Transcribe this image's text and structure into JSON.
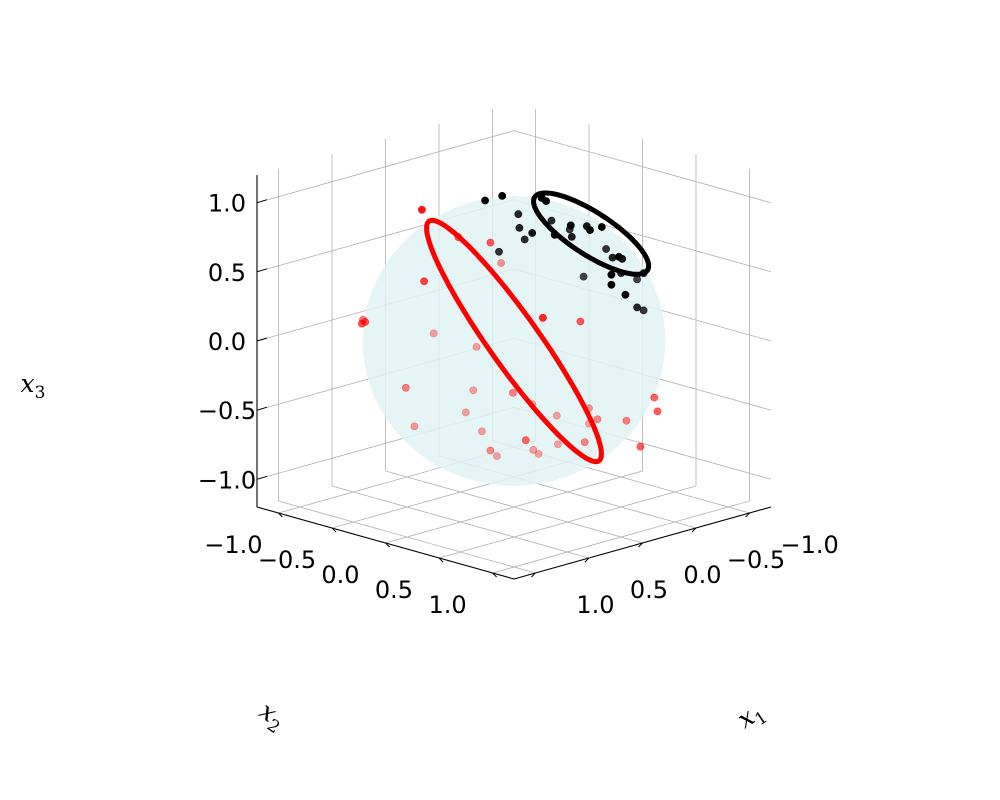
{
  "chart_data": {
    "type": "scatter",
    "projection": "3d",
    "title": "",
    "axes": {
      "x1": {
        "label": "x",
        "subscript": "1",
        "ticks": [
          "−1.0",
          "−0.5",
          "0.0",
          "0.5",
          "1.0"
        ],
        "range": [
          -1.2,
          1.2
        ]
      },
      "x2": {
        "label": "x",
        "subscript": "2",
        "ticks": [
          "−1.0",
          "−0.5",
          "0.0",
          "0.5",
          "1.0"
        ],
        "range": [
          -1.2,
          1.2
        ]
      },
      "x3": {
        "label": "x",
        "subscript": "3",
        "ticks": [
          "−1.0",
          "−0.5",
          "0.0",
          "0.5",
          "1.0"
        ],
        "range": [
          -1.2,
          1.2
        ]
      }
    },
    "grid": true,
    "surface": {
      "shape": "unit sphere",
      "color": "#e0f2f2"
    },
    "circles": [
      {
        "color": "#000000",
        "center": [
          -0.72,
          0.0,
          0.62
        ],
        "normal": [
          -0.72,
          0.0,
          0.62
        ],
        "radius": 0.45
      },
      {
        "color": "#ff0000",
        "center": [
          0.0,
          0.0,
          0.0
        ],
        "normal": [
          -0.58,
          0.58,
          0.58
        ],
        "radius": 1.0
      }
    ],
    "series": [
      {
        "color": "#000000",
        "points": [
          [
            -0.45,
            -0.56,
            0.83
          ],
          [
            -0.67,
            -0.14,
            0.66
          ],
          [
            -0.25,
            -0.2,
            0.72
          ],
          [
            -0.66,
            -0.36,
            0.79
          ],
          [
            -0.93,
            -0.02,
            0.2
          ],
          [
            -0.36,
            -0.01,
            0.79
          ],
          [
            -0.08,
            -0.22,
            0.58
          ],
          [
            -0.53,
            0.01,
            0.64
          ],
          [
            -0.88,
            -0.06,
            0.62
          ],
          [
            -0.72,
            0.2,
            0.49
          ],
          [
            -0.71,
            0.29,
            0.4
          ],
          [
            -0.41,
            -0.24,
            0.64
          ],
          [
            -0.97,
            0.01,
            0.4
          ],
          [
            -0.61,
            0.54,
            0.43
          ],
          [
            -0.79,
            0.22,
            0.47
          ],
          [
            -0.36,
            0.29,
            0.45
          ],
          [
            -0.7,
            0.51,
            0.18
          ],
          [
            -0.6,
            -0.34,
            0.83
          ],
          [
            -0.96,
            -0.05,
            0.26
          ],
          [
            -0.39,
            0.13,
            0.75
          ],
          [
            -0.64,
            0.04,
            0.7
          ],
          [
            -0.22,
            -0.18,
            0.83
          ],
          [
            -0.86,
            0.35,
            0.38
          ],
          [
            -0.34,
            -0.61,
            0.81
          ],
          [
            -0.22,
            -0.12,
            0.66
          ],
          [
            -0.58,
            0.28,
            0.6
          ],
          [
            -0.76,
            -0.38,
            0.52
          ],
          [
            -0.79,
            0.36,
            0.15
          ],
          [
            -0.99,
            0.05,
            0.13
          ],
          [
            -0.75,
            -0.04,
            0.63
          ]
        ]
      },
      {
        "color": "#ff0000",
        "points": [
          [
            0.72,
            -0.7,
            0.13
          ],
          [
            -0.52,
            0.79,
            -0.35
          ],
          [
            0.2,
            -0.02,
            0.75
          ],
          [
            0.77,
            -0.62,
            0.17
          ],
          [
            -0.22,
            0.4,
            0.18
          ],
          [
            0.08,
            0.35,
            0.26
          ],
          [
            0.92,
            -0.01,
            -0.42
          ],
          [
            0.94,
            0.19,
            0.3
          ],
          [
            0.37,
            -0.47,
            0.41
          ],
          [
            0.41,
            0.82,
            -0.48
          ],
          [
            0.85,
            0.47,
            -0.07
          ],
          [
            0.35,
            -0.17,
            0.79
          ],
          [
            0.15,
            0.85,
            -0.38
          ],
          [
            -0.03,
            0.75,
            -0.41
          ],
          [
            0.6,
            0.77,
            -0.16
          ],
          [
            0.78,
            0.43,
            0.22
          ],
          [
            0.08,
            0.78,
            -0.3
          ],
          [
            0.46,
            0.24,
            -0.64
          ],
          [
            0.42,
            0.82,
            -0.27
          ],
          [
            0.11,
            -0.75,
            0.81
          ],
          [
            0.02,
            0.68,
            -0.58
          ],
          [
            0.84,
            0.39,
            -0.25
          ],
          [
            0.78,
            0.48,
            -0.38
          ],
          [
            -0.49,
            0.69,
            -0.72
          ],
          [
            0.93,
            -0.48,
            0.25
          ],
          [
            -0.58,
            0.76,
            -0.47
          ],
          [
            0.55,
            0.73,
            -0.51
          ],
          [
            0.8,
            0.64,
            -0.52
          ],
          [
            0.34,
            0.33,
            -0.23
          ],
          [
            0.8,
            -0.21,
            -0.21
          ],
          [
            0.1,
            0.21,
            -0.65
          ],
          [
            -0.04,
            0.23,
            0.21
          ],
          [
            -0.21,
            0.84,
            -0.44
          ],
          [
            0.57,
            0.8,
            -0.52
          ],
          [
            0.49,
            0.37,
            0.75
          ]
        ]
      }
    ]
  }
}
